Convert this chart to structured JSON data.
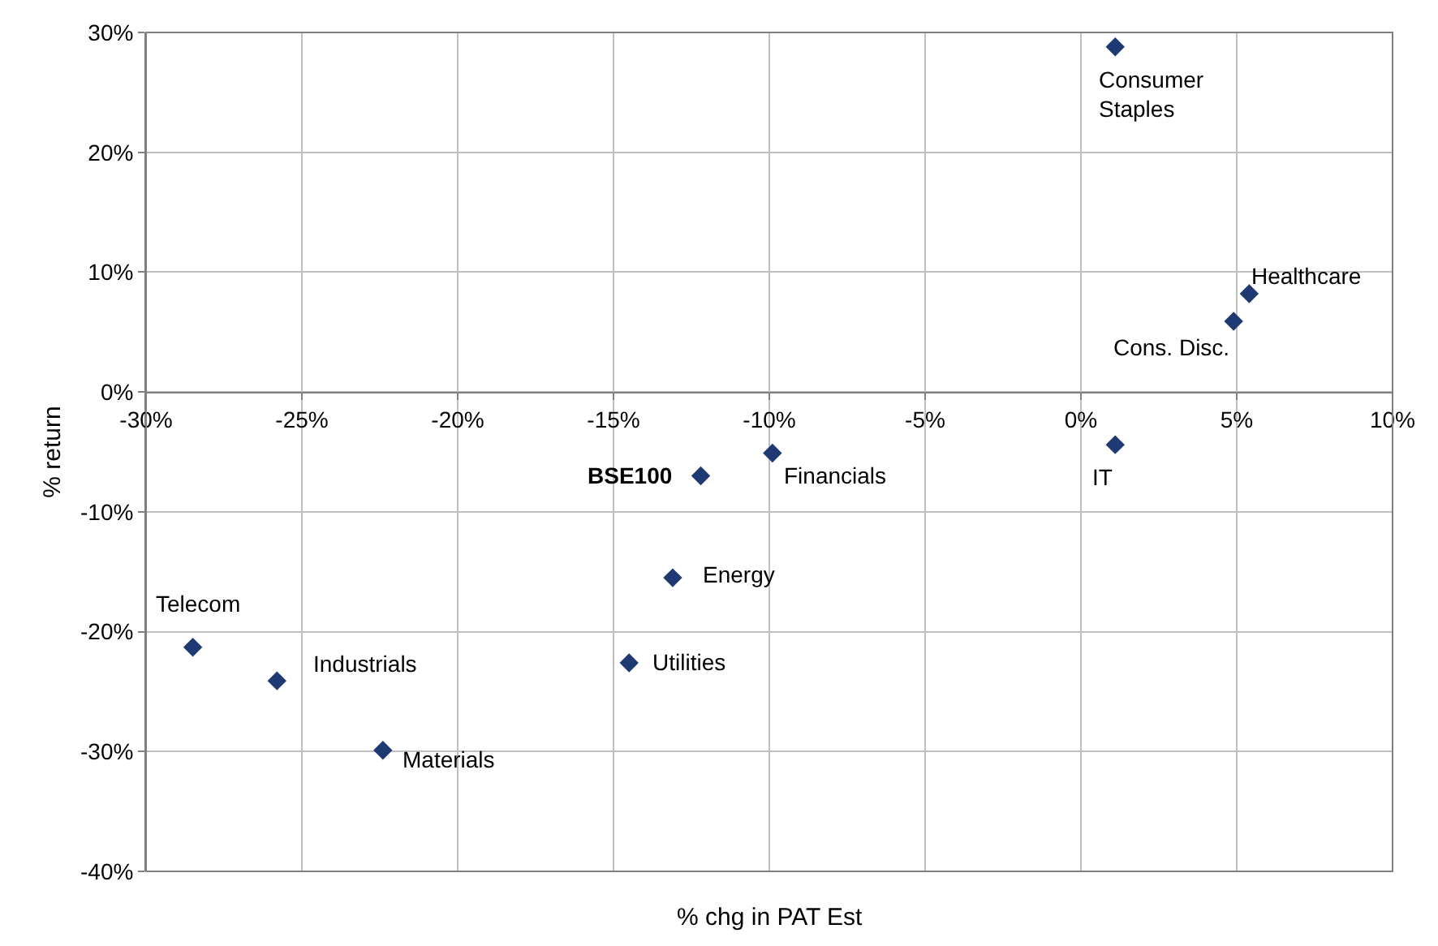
{
  "chart_data": {
    "type": "scatter",
    "xlabel": "% chg in PAT Est",
    "ylabel": "% return",
    "x": [
      1.1,
      5.4,
      4.9,
      1.1,
      -9.9,
      -12.2,
      -13.1,
      -14.5,
      -28.5,
      -25.8,
      -22.4
    ],
    "series": [
      {
        "color": "#1f3a73",
        "values": [
          28.8,
          8.2,
          5.9,
          -4.4,
          -5.1,
          -7.0,
          -15.5,
          -22.6,
          -21.3,
          -24.1,
          -29.9
        ]
      }
    ],
    "annotations": [
      {
        "text": "Consumer\nStaples",
        "x": 1.1,
        "y": 28.8
      },
      {
        "text": "Healthcare",
        "x": 5.4,
        "y": 8.2
      },
      {
        "text": "Cons. Disc.",
        "x": 4.9,
        "y": 5.9
      },
      {
        "text": "IT",
        "x": 1.1,
        "y": -4.4
      },
      {
        "text": "Financials",
        "x": -9.9,
        "y": -5.1
      },
      {
        "text": "BSE100",
        "x": -12.2,
        "y": -7.0
      },
      {
        "text": "Energy",
        "x": -13.1,
        "y": -15.5
      },
      {
        "text": "Utilities",
        "x": -14.5,
        "y": -22.6
      },
      {
        "text": "Telecom",
        "x": -28.5,
        "y": -21.3
      },
      {
        "text": "Industrials",
        "x": -25.8,
        "y": -24.1
      },
      {
        "text": "Materials",
        "x": -22.4,
        "y": -29.9
      }
    ],
    "xlim": [
      -30,
      10
    ],
    "xticks": [
      {
        "value": -30,
        "label": "-30%"
      },
      {
        "value": -25,
        "label": "-25%"
      },
      {
        "value": -20,
        "label": "-20%"
      },
      {
        "value": -15,
        "label": "-15%"
      },
      {
        "value": -10,
        "label": "-10%"
      },
      {
        "value": -5,
        "label": "-5%"
      },
      {
        "value": 0,
        "label": "0%"
      },
      {
        "value": 5,
        "label": "5%"
      },
      {
        "value": 10,
        "label": "10%"
      }
    ],
    "ylim": [
      -40,
      30
    ],
    "yticks": [
      {
        "value": -40,
        "label": "-40%"
      },
      {
        "value": -30,
        "label": "-30%"
      },
      {
        "value": -20,
        "label": "-20%"
      },
      {
        "value": -10,
        "label": "-10%"
      },
      {
        "value": 0,
        "label": "0%"
      },
      {
        "value": 10,
        "label": "10%"
      },
      {
        "value": 20,
        "label": "20%"
      },
      {
        "value": 30,
        "label": "30%"
      }
    ],
    "grid": true,
    "marker": "diamond"
  }
}
